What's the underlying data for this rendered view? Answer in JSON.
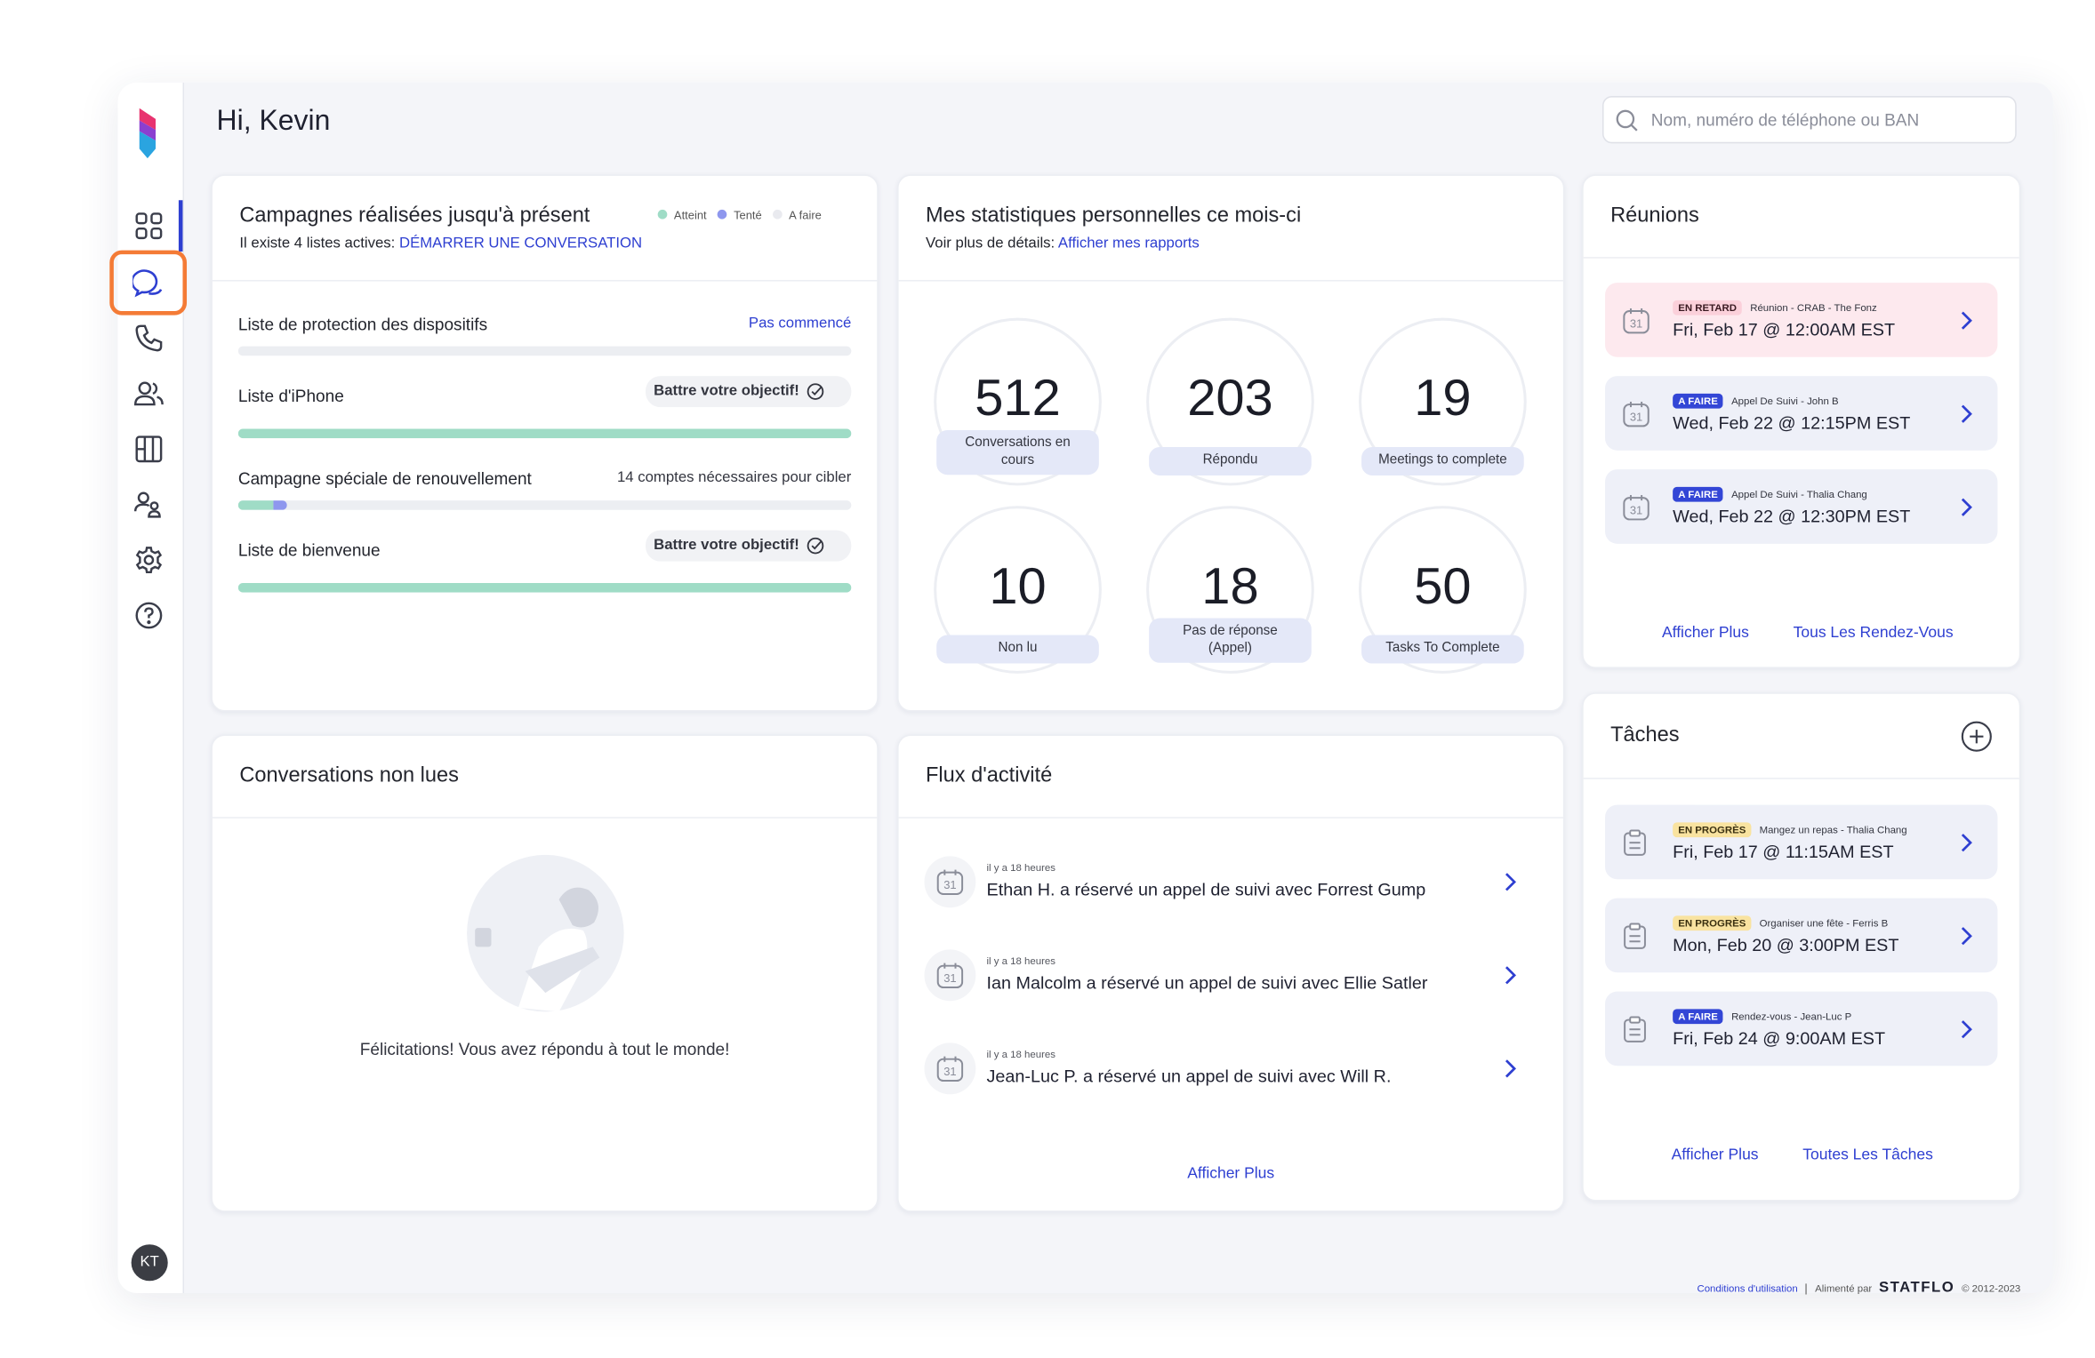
{
  "header": {
    "greeting": "Hi, Kevin",
    "search_placeholder": "Nom, numéro de téléphone ou BAN"
  },
  "sidebar": {
    "avatar": "KT"
  },
  "icon_day": "31",
  "campaigns": {
    "title": "Campagnes réalisées jusqu'à présent",
    "subtitle": "Il existe 4 listes actives:",
    "link": "DÉMARRER UNE CONVERSATION",
    "legend": [
      "Atteint",
      "Tenté",
      "A faire"
    ],
    "items": [
      {
        "name": "Liste de protection des dispositifs",
        "status": "Pas commencé"
      },
      {
        "name": "Liste d'iPhone",
        "status": "Battre votre objectif!"
      },
      {
        "name": "Campagne spéciale de renouvellement",
        "status": "14 comptes nécessaires pour cibler"
      },
      {
        "name": "Liste de bienvenue",
        "status": "Battre votre objectif!"
      }
    ]
  },
  "stats": {
    "title": "Mes statistiques personnelles ce mois-ci",
    "subtitle": "Voir plus de détails:",
    "link": "Afficher mes rapports",
    "items": [
      {
        "value": 512,
        "label": "Conversations en cours"
      },
      {
        "value": 203,
        "label": "Répondu"
      },
      {
        "value": 19,
        "label": "Meetings to complete"
      },
      {
        "value": 10,
        "label": "Non lu"
      },
      {
        "value": 18,
        "label": "Pas de réponse (Appel)"
      },
      {
        "value": 50,
        "label": "Tasks To Complete"
      }
    ]
  },
  "meetings": {
    "title": "Réunions",
    "items": [
      {
        "badge": "EN RETARD",
        "subject": "Réunion - CRAB - The Fonz",
        "when": "Fri, Feb 17 @ 12:00AM EST"
      },
      {
        "badge": "A FAIRE",
        "subject": "Appel De Suivi - John B",
        "when": "Wed, Feb 22 @ 12:15PM EST"
      },
      {
        "badge": "A FAIRE",
        "subject": "Appel De Suivi - Thalia Chang",
        "when": "Wed, Feb 22 @ 12:30PM EST"
      }
    ],
    "links": [
      "Afficher Plus",
      "Tous Les Rendez-Vous"
    ]
  },
  "unread": {
    "title": "Conversations non lues",
    "message": "Félicitations! Vous avez répondu à tout le monde!"
  },
  "activity": {
    "title": "Flux d'activité",
    "items": [
      {
        "time": "il y a 18 heures",
        "text": "Ethan H. a réservé un appel de suivi avec Forrest Gump"
      },
      {
        "time": "il y a 18 heures",
        "text": "Ian Malcolm a réservé un appel de suivi avec Ellie Satler"
      },
      {
        "time": "il y a 18 heures",
        "text": "Jean-Luc P. a réservé un appel de suivi avec Will R."
      }
    ],
    "link": "Afficher Plus"
  },
  "tasks": {
    "title": "Tâches",
    "items": [
      {
        "badge": "EN PROGRÈS",
        "subject": "Mangez un repas - Thalia Chang",
        "when": "Fri, Feb 17 @ 11:15AM EST"
      },
      {
        "badge": "EN PROGRÈS",
        "subject": "Organiser une fête - Ferris B",
        "when": "Mon, Feb 20 @ 3:00PM EST"
      },
      {
        "badge": "A FAIRE",
        "subject": "Rendez-vous - Jean-Luc P",
        "when": "Fri, Feb 24 @ 9:00AM EST"
      }
    ],
    "links": [
      "Afficher Plus",
      "Toutes Les Tâches"
    ]
  },
  "footer": {
    "terms": "Conditions d'utilisation",
    "powered": "Alimenté par",
    "brand": "STATFLO",
    "copyright": "© 2012-2023"
  }
}
